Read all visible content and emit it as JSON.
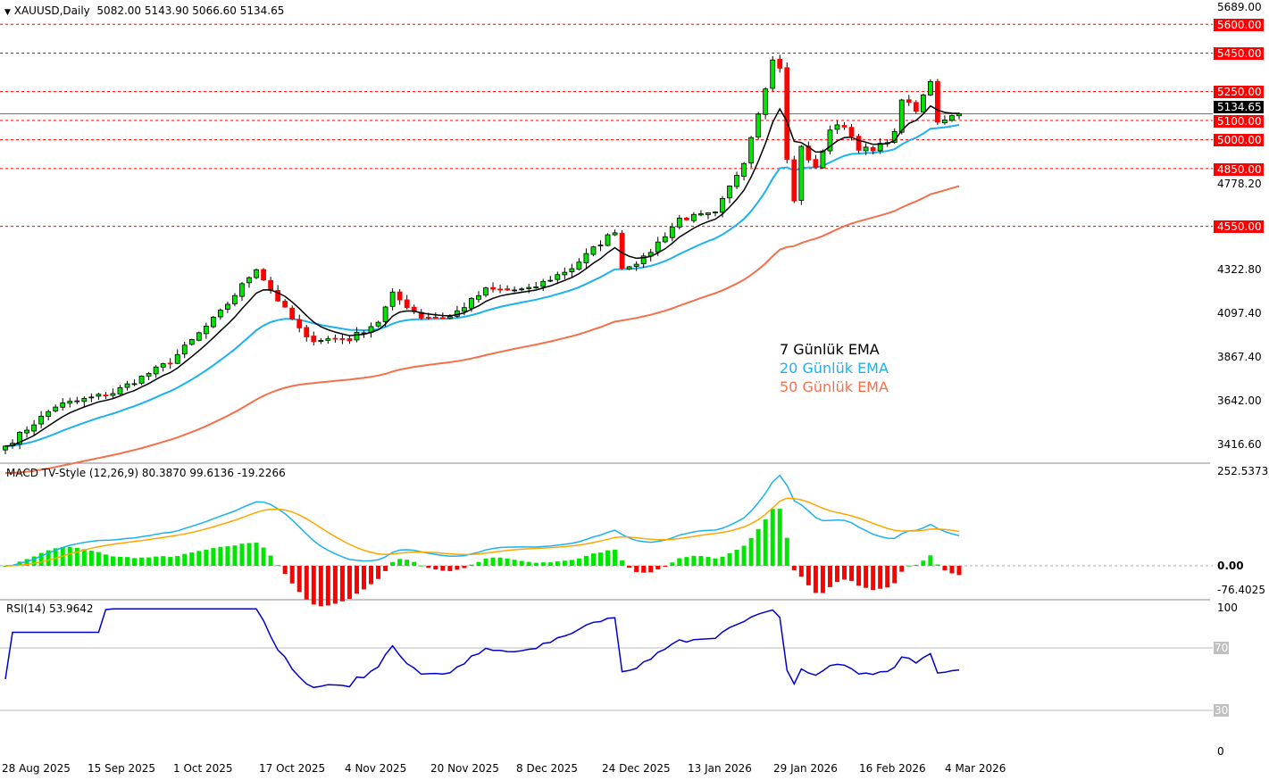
{
  "header": {
    "symbol": "XAUUSD,Daily",
    "ohlc": "5082.00 5143.90 5066.60 5134.65"
  },
  "price_axis": {
    "ticks": [
      "5689.00",
      "4778.20",
      "4322.80",
      "4097.40",
      "3867.40",
      "3642.00",
      "3416.60"
    ],
    "levels": [
      "5600.00",
      "5450.00",
      "5250.00",
      "5100.00",
      "5000.00",
      "4850.00",
      "4550.00"
    ],
    "current": "5134.65"
  },
  "legend": {
    "ema7": "7 Günlük EMA",
    "ema20": "20 Günlük EMA",
    "ema50": "50 Günlük EMA"
  },
  "colors": {
    "ema7": "#000000",
    "ema20": "#1ab2f0",
    "ema50": "#f4704a",
    "up": "#00e600",
    "down": "#ff0000",
    "level": "#ff0000",
    "macd": "#1ab2f0",
    "signal": "#ffa500",
    "rsi": "#0000cc"
  },
  "macd": {
    "title": "MACD TV-Style (12,26,9) 80.3870 99.6136 -19.2266",
    "ticks": [
      "252.5373",
      "0.00",
      "-76.4025"
    ]
  },
  "rsi": {
    "title": "RSI(14) 53.9642",
    "ticks": [
      "100",
      "70",
      "30",
      "0"
    ]
  },
  "dates": [
    "28 Aug 2025",
    "15 Sep 2025",
    "1 Oct 2025",
    "17 Oct 2025",
    "4 Nov 2025",
    "20 Nov 2025",
    "8 Dec 2025",
    "24 Dec 2025",
    "13 Jan 2026",
    "29 Jan 2026",
    "16 Feb 2026",
    "4 Mar 2026"
  ],
  "chart_data": {
    "type": "candlestick",
    "bars": 134,
    "close_keypoints": [
      [
        0,
        3408
      ],
      [
        7,
        3616
      ],
      [
        15,
        3685
      ],
      [
        23,
        3847
      ],
      [
        30,
        4102
      ],
      [
        35,
        4335
      ],
      [
        37,
        4219
      ],
      [
        42,
        3964
      ],
      [
        48,
        3964
      ],
      [
        52,
        4056
      ],
      [
        54,
        4196
      ],
      [
        58,
        4080
      ],
      [
        62,
        4080
      ],
      [
        67,
        4219
      ],
      [
        73,
        4219
      ],
      [
        79,
        4335
      ],
      [
        85,
        4529
      ],
      [
        86,
        4335
      ],
      [
        89,
        4381
      ],
      [
        94,
        4590
      ],
      [
        99,
        4613
      ],
      [
        103,
        4891
      ],
      [
        105,
        5146
      ],
      [
        107,
        5411
      ],
      [
        108,
        5380
      ],
      [
        109,
        4891
      ],
      [
        110,
        4682
      ],
      [
        111,
        4960
      ],
      [
        113,
        4845
      ],
      [
        115,
        5054
      ],
      [
        117,
        5077
      ],
      [
        119,
        4960
      ],
      [
        121,
        4938
      ],
      [
        124,
        5030
      ],
      [
        125,
        5216
      ],
      [
        127,
        5146
      ],
      [
        129,
        5309
      ],
      [
        130,
        5100
      ],
      [
        132,
        5123
      ],
      [
        133,
        5134.65
      ]
    ],
    "levels": [
      5600,
      5450,
      5250,
      5100,
      5000,
      4850,
      4550
    ],
    "ylim": [
      3416.6,
      5689
    ],
    "macd_ylim": [
      -76.4025,
      252.5373
    ],
    "rsi_levels": [
      70,
      30
    ]
  }
}
